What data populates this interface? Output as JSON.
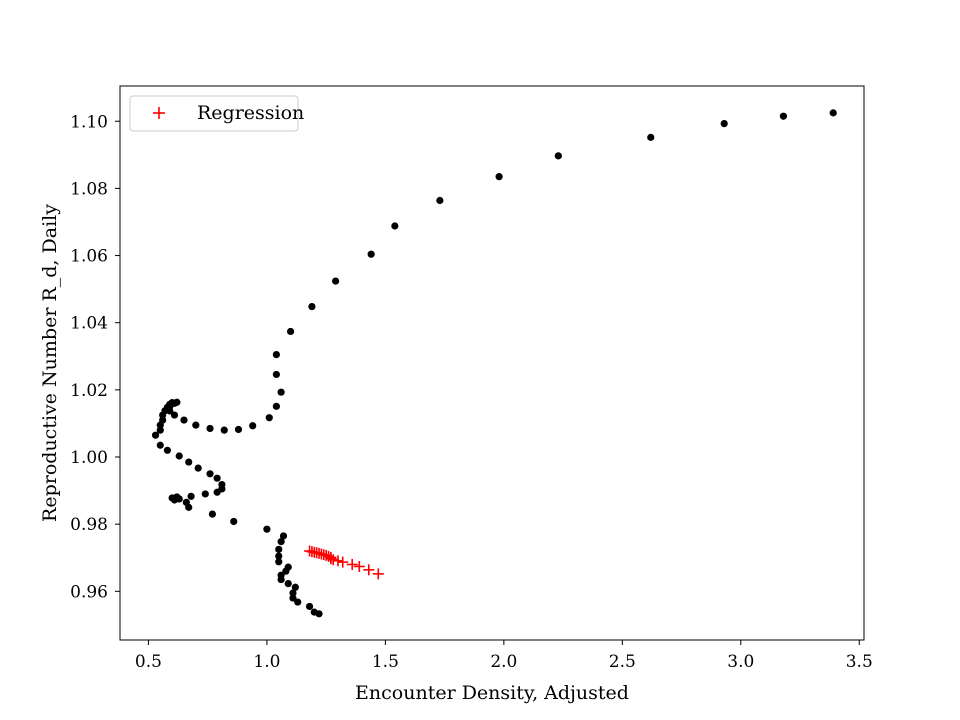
{
  "chart_data": {
    "type": "scatter",
    "xlabel": "Encounter Density, Adjusted",
    "ylabel": "Reproductive Number R_d, Daily",
    "xlim": [
      0.38,
      3.52
    ],
    "ylim": [
      0.9455,
      1.1105
    ],
    "grid": false,
    "legend_position": "upper-left",
    "x_ticks": [
      0.5,
      1.0,
      1.5,
      2.0,
      2.5,
      3.0,
      3.5
    ],
    "x_tick_labels": [
      "0.5",
      "1.0",
      "1.5",
      "2.0",
      "2.5",
      "3.0",
      "3.5"
    ],
    "y_ticks": [
      0.96,
      0.98,
      1.0,
      1.02,
      1.04,
      1.06,
      1.08,
      1.1
    ],
    "y_tick_labels": [
      "0.96",
      "0.98",
      "1.00",
      "1.02",
      "1.04",
      "1.06",
      "1.08",
      "1.10"
    ],
    "series": [
      {
        "marker": "dot",
        "color": "#000000",
        "points": [
          [
            3.39,
            1.1025
          ],
          [
            3.18,
            1.1015
          ],
          [
            2.93,
            1.0993
          ],
          [
            2.62,
            1.0952
          ],
          [
            2.23,
            1.0897
          ],
          [
            1.98,
            1.0835
          ],
          [
            1.73,
            1.0764
          ],
          [
            1.54,
            1.0688
          ],
          [
            1.44,
            1.0604
          ],
          [
            1.29,
            1.0524
          ],
          [
            1.19,
            1.0448
          ],
          [
            1.1,
            1.0374
          ],
          [
            1.04,
            1.0305
          ],
          [
            1.04,
            1.0246
          ],
          [
            1.06,
            1.0193
          ],
          [
            1.04,
            1.0151
          ],
          [
            1.01,
            1.0117
          ],
          [
            0.94,
            1.0093
          ],
          [
            0.88,
            1.0082
          ],
          [
            0.82,
            1.008
          ],
          [
            0.76,
            1.0085
          ],
          [
            0.7,
            1.0095
          ],
          [
            0.65,
            1.011
          ],
          [
            0.61,
            1.0125
          ],
          [
            0.59,
            1.0137
          ],
          [
            0.58,
            1.0148
          ],
          [
            0.59,
            1.0157
          ],
          [
            0.6,
            1.0162
          ],
          [
            0.62,
            1.0163
          ],
          [
            0.61,
            1.016
          ],
          [
            0.59,
            1.015
          ],
          [
            0.57,
            1.0138
          ],
          [
            0.56,
            1.0125
          ],
          [
            0.56,
            1.011
          ],
          [
            0.55,
            1.0095
          ],
          [
            0.55,
            1.008
          ],
          [
            0.53,
            1.0065
          ],
          [
            0.55,
            1.0035
          ],
          [
            0.58,
            1.002
          ],
          [
            0.63,
            1.0003
          ],
          [
            0.67,
            0.9985
          ],
          [
            0.71,
            0.9967
          ],
          [
            0.76,
            0.995
          ],
          [
            0.79,
            0.9937
          ],
          [
            0.81,
            0.9918
          ],
          [
            0.81,
            0.9905
          ],
          [
            0.79,
            0.9895
          ],
          [
            0.74,
            0.989
          ],
          [
            0.68,
            0.9883
          ],
          [
            0.63,
            0.9875
          ],
          [
            0.61,
            0.9872
          ],
          [
            0.6,
            0.9878
          ],
          [
            0.62,
            0.9881
          ],
          [
            0.66,
            0.9865
          ],
          [
            0.67,
            0.985
          ],
          [
            0.77,
            0.983
          ],
          [
            0.86,
            0.9808
          ],
          [
            1.0,
            0.9785
          ],
          [
            1.07,
            0.9765
          ],
          [
            1.06,
            0.9748
          ],
          [
            1.05,
            0.9725
          ],
          [
            1.05,
            0.9705
          ],
          [
            1.05,
            0.9688
          ],
          [
            1.09,
            0.9672
          ],
          [
            1.08,
            0.966
          ],
          [
            1.06,
            0.9648
          ],
          [
            1.06,
            0.9635
          ],
          [
            1.09,
            0.9623
          ],
          [
            1.12,
            0.9612
          ],
          [
            1.11,
            0.9595
          ],
          [
            1.11,
            0.958
          ],
          [
            1.13,
            0.9568
          ],
          [
            1.18,
            0.9555
          ],
          [
            1.2,
            0.9538
          ],
          [
            1.22,
            0.9533
          ]
        ]
      },
      {
        "name": "Regression",
        "marker": "plus",
        "color": "#ff0000",
        "points": [
          [
            1.18,
            0.972
          ],
          [
            1.19,
            0.9718
          ],
          [
            1.2,
            0.9716
          ],
          [
            1.21,
            0.9715
          ],
          [
            1.22,
            0.9713
          ],
          [
            1.23,
            0.9711
          ],
          [
            1.24,
            0.9709
          ],
          [
            1.25,
            0.9707
          ],
          [
            1.26,
            0.9704
          ],
          [
            1.27,
            0.9701
          ],
          [
            1.27,
            0.9697
          ],
          [
            1.28,
            0.9694
          ],
          [
            1.3,
            0.9691
          ],
          [
            1.32,
            0.9687
          ],
          [
            1.36,
            0.968
          ],
          [
            1.39,
            0.9674
          ],
          [
            1.43,
            0.9664
          ],
          [
            1.47,
            0.9652
          ]
        ]
      }
    ]
  }
}
